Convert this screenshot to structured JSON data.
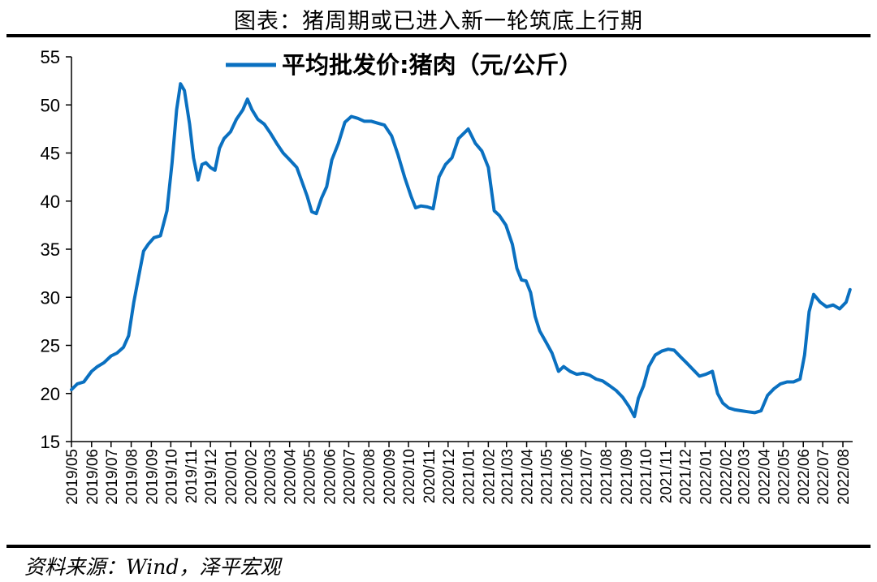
{
  "title": "图表：猪周期或已进入新一轮筑底上行期",
  "source": "资料来源：Wind，泽平宏观",
  "colors": {
    "series": "#0a70c0",
    "axis": "#000000",
    "rule": "#000000"
  },
  "chart_data": {
    "type": "line",
    "title": "",
    "xlabel": "",
    "ylabel": "",
    "ylim": [
      15,
      55
    ],
    "yticks": [
      15,
      20,
      25,
      30,
      35,
      40,
      45,
      50,
      55
    ],
    "grid": false,
    "legend_position": "top-center",
    "x_tick_labels": [
      "2019/05",
      "2019/06",
      "2019/07",
      "2019/08",
      "2019/09",
      "2019/10",
      "2019/11",
      "2019/12",
      "2020/01",
      "2020/02",
      "2020/03",
      "2020/04",
      "2020/05",
      "2020/06",
      "2020/07",
      "2020/08",
      "2020/09",
      "2020/10",
      "2020/11",
      "2020/12",
      "2021/01",
      "2021/02",
      "2021/03",
      "2021/04",
      "2021/05",
      "2021/06",
      "2021/07",
      "2021/08",
      "2021/09",
      "2021/10",
      "2021/11",
      "2021/12",
      "2022/01",
      "2022/02",
      "2022/03",
      "2022/04",
      "2022/05",
      "2022/06",
      "2022/07",
      "2022/08"
    ],
    "series": [
      {
        "name": "平均批发价:猪肉（元/公斤）",
        "points": [
          [
            "2019/05/01",
            20.4
          ],
          [
            "2019/05/10",
            21.0
          ],
          [
            "2019/05/20",
            21.2
          ],
          [
            "2019/06/01",
            22.3
          ],
          [
            "2019/06/10",
            22.8
          ],
          [
            "2019/06/20",
            23.2
          ],
          [
            "2019/07/01",
            23.9
          ],
          [
            "2019/07/10",
            24.2
          ],
          [
            "2019/07/20",
            24.8
          ],
          [
            "2019/07/28",
            26.0
          ],
          [
            "2019/08/05",
            29.5
          ],
          [
            "2019/08/12",
            32.0
          ],
          [
            "2019/08/20",
            34.8
          ],
          [
            "2019/08/27",
            35.5
          ],
          [
            "2019/09/05",
            36.2
          ],
          [
            "2019/09/15",
            36.4
          ],
          [
            "2019/09/25",
            39.0
          ],
          [
            "2019/10/03",
            44.0
          ],
          [
            "2019/10/10",
            49.5
          ],
          [
            "2019/10/16",
            52.2
          ],
          [
            "2019/10/22",
            51.5
          ],
          [
            "2019/10/30",
            48.0
          ],
          [
            "2019/11/05",
            44.5
          ],
          [
            "2019/11/12",
            42.2
          ],
          [
            "2019/11/18",
            43.8
          ],
          [
            "2019/11/24",
            44.0
          ],
          [
            "2019/12/01",
            43.5
          ],
          [
            "2019/12/08",
            43.2
          ],
          [
            "2019/12/15",
            45.5
          ],
          [
            "2019/12/22",
            46.5
          ],
          [
            "2020/01/01",
            47.2
          ],
          [
            "2020/01/10",
            48.5
          ],
          [
            "2020/01/20",
            49.5
          ],
          [
            "2020/01/27",
            50.6
          ],
          [
            "2020/02/03",
            49.5
          ],
          [
            "2020/02/12",
            48.5
          ],
          [
            "2020/02/22",
            48.0
          ],
          [
            "2020/03/03",
            47.0
          ],
          [
            "2020/03/12",
            46.0
          ],
          [
            "2020/03/22",
            45.0
          ],
          [
            "2020/04/01",
            44.3
          ],
          [
            "2020/04/12",
            43.5
          ],
          [
            "2020/04/20",
            42.0
          ],
          [
            "2020/04/28",
            40.5
          ],
          [
            "2020/05/05",
            38.9
          ],
          [
            "2020/05/12",
            38.7
          ],
          [
            "2020/05/20",
            40.3
          ],
          [
            "2020/05/28",
            41.5
          ],
          [
            "2020/06/05",
            44.3
          ],
          [
            "2020/06/15",
            46.0
          ],
          [
            "2020/06/25",
            48.2
          ],
          [
            "2020/07/05",
            48.8
          ],
          [
            "2020/07/15",
            48.6
          ],
          [
            "2020/07/25",
            48.3
          ],
          [
            "2020/08/05",
            48.3
          ],
          [
            "2020/08/15",
            48.1
          ],
          [
            "2020/08/25",
            47.9
          ],
          [
            "2020/09/05",
            46.8
          ],
          [
            "2020/09/15",
            44.8
          ],
          [
            "2020/09/25",
            42.5
          ],
          [
            "2020/10/05",
            40.5
          ],
          [
            "2020/10/12",
            39.3
          ],
          [
            "2020/10/20",
            39.5
          ],
          [
            "2020/10/30",
            39.4
          ],
          [
            "2020/11/08",
            39.2
          ],
          [
            "2020/11/17",
            42.5
          ],
          [
            "2020/11/27",
            43.8
          ],
          [
            "2020/12/07",
            44.5
          ],
          [
            "2020/12/17",
            46.5
          ],
          [
            "2021/01/01",
            47.5
          ],
          [
            "2021/01/12",
            46.0
          ],
          [
            "2021/01/22",
            45.2
          ],
          [
            "2021/02/01",
            43.5
          ],
          [
            "2021/02/10",
            39.0
          ],
          [
            "2021/02/18",
            38.5
          ],
          [
            "2021/02/28",
            37.5
          ],
          [
            "2021/03/10",
            35.5
          ],
          [
            "2021/03/17",
            33.0
          ],
          [
            "2021/03/24",
            31.8
          ],
          [
            "2021/03/31",
            31.7
          ],
          [
            "2021/04/07",
            30.5
          ],
          [
            "2021/04/14",
            28.0
          ],
          [
            "2021/04/21",
            26.5
          ],
          [
            "2021/05/01",
            25.3
          ],
          [
            "2021/05/10",
            24.2
          ],
          [
            "2021/05/20",
            22.3
          ],
          [
            "2021/05/28",
            22.8
          ],
          [
            "2021/06/07",
            22.3
          ],
          [
            "2021/06/17",
            22.0
          ],
          [
            "2021/06/27",
            22.1
          ],
          [
            "2021/07/07",
            21.9
          ],
          [
            "2021/07/17",
            21.5
          ],
          [
            "2021/07/27",
            21.3
          ],
          [
            "2021/08/07",
            20.8
          ],
          [
            "2021/08/17",
            20.3
          ],
          [
            "2021/08/27",
            19.6
          ],
          [
            "2021/09/06",
            18.6
          ],
          [
            "2021/09/14",
            17.6
          ],
          [
            "2021/09/20",
            19.5
          ],
          [
            "2021/09/28",
            20.8
          ],
          [
            "2021/10/06",
            22.8
          ],
          [
            "2021/10/16",
            24.0
          ],
          [
            "2021/10/26",
            24.4
          ],
          [
            "2021/11/05",
            24.6
          ],
          [
            "2021/11/14",
            24.5
          ],
          [
            "2021/11/24",
            23.8
          ],
          [
            "2021/12/03",
            23.2
          ],
          [
            "2021/12/13",
            22.5
          ],
          [
            "2021/12/23",
            21.8
          ],
          [
            "2022/01/02",
            22.0
          ],
          [
            "2022/01/12",
            22.3
          ],
          [
            "2022/01/20",
            20.0
          ],
          [
            "2022/01/28",
            19.0
          ],
          [
            "2022/02/06",
            18.5
          ],
          [
            "2022/02/16",
            18.3
          ],
          [
            "2022/02/26",
            18.2
          ],
          [
            "2022/03/08",
            18.1
          ],
          [
            "2022/03/18",
            18.0
          ],
          [
            "2022/03/28",
            18.2
          ],
          [
            "2022/04/07",
            19.8
          ],
          [
            "2022/04/17",
            20.5
          ],
          [
            "2022/04/27",
            21.0
          ],
          [
            "2022/05/07",
            21.2
          ],
          [
            "2022/05/17",
            21.2
          ],
          [
            "2022/05/27",
            21.5
          ],
          [
            "2022/06/03",
            24.0
          ],
          [
            "2022/06/10",
            28.5
          ],
          [
            "2022/06/17",
            30.3
          ],
          [
            "2022/06/27",
            29.5
          ],
          [
            "2022/07/07",
            29.0
          ],
          [
            "2022/07/17",
            29.2
          ],
          [
            "2022/07/27",
            28.8
          ],
          [
            "2022/08/06",
            29.5
          ],
          [
            "2022/08/12",
            30.8
          ]
        ]
      }
    ]
  }
}
